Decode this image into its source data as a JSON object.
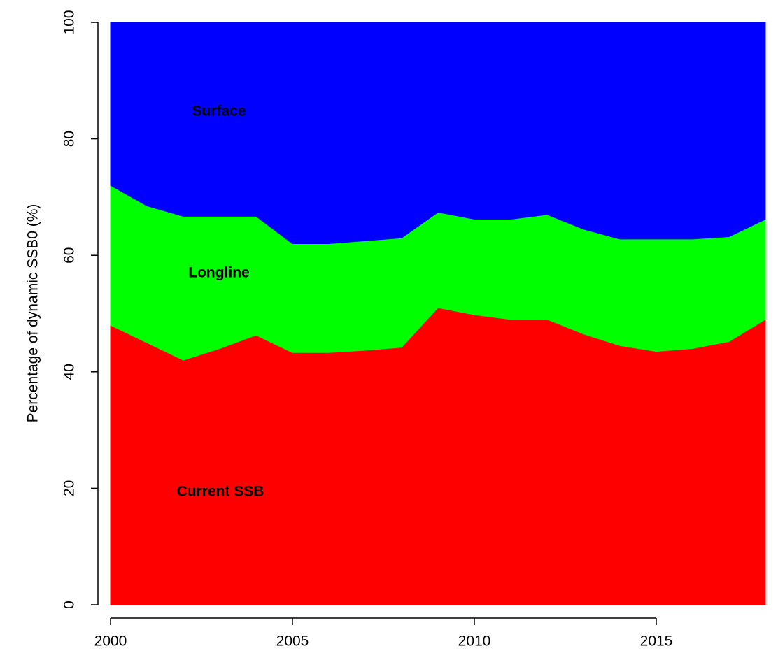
{
  "chart_data": {
    "type": "stacked-area",
    "y_label": "Percentage of dynamic SSB0 (%)",
    "x": [
      2000,
      2001,
      2002,
      2003,
      2004,
      2005,
      2006,
      2007,
      2008,
      2009,
      2010,
      2011,
      2012,
      2013,
      2014,
      2015,
      2016,
      2017,
      2018
    ],
    "series": [
      {
        "name": "Current SSB",
        "color": "#ff0000",
        "values": [
          48,
          45,
          42,
          44,
          46.3,
          43.3,
          43.3,
          43.7,
          44.2,
          51,
          49.8,
          49,
          49,
          46.5,
          44.5,
          43.5,
          44,
          45.2,
          49
        ]
      },
      {
        "name": "Longline",
        "color": "#00ff00",
        "values": [
          24,
          23.5,
          24.7,
          22.7,
          20.4,
          18.7,
          18.7,
          18.8,
          18.8,
          16.4,
          16.4,
          17.2,
          18,
          18,
          18.3,
          19.3,
          18.8,
          18,
          17.2
        ]
      },
      {
        "name": "Surface",
        "color": "#0000ff",
        "values": [
          28,
          31.5,
          33.3,
          33.3,
          33.3,
          38,
          38,
          37.5,
          37,
          32.6,
          33.8,
          33.8,
          33,
          35.5,
          37.2,
          37.2,
          37.2,
          36.8,
          33.8
        ]
      }
    ],
    "xlim": [
      2000,
      2018
    ],
    "xticks": [
      2000,
      2005,
      2010,
      2015
    ],
    "ylim": [
      0,
      100
    ],
    "yticks": [
      0,
      20,
      40,
      60,
      80,
      100
    ]
  }
}
